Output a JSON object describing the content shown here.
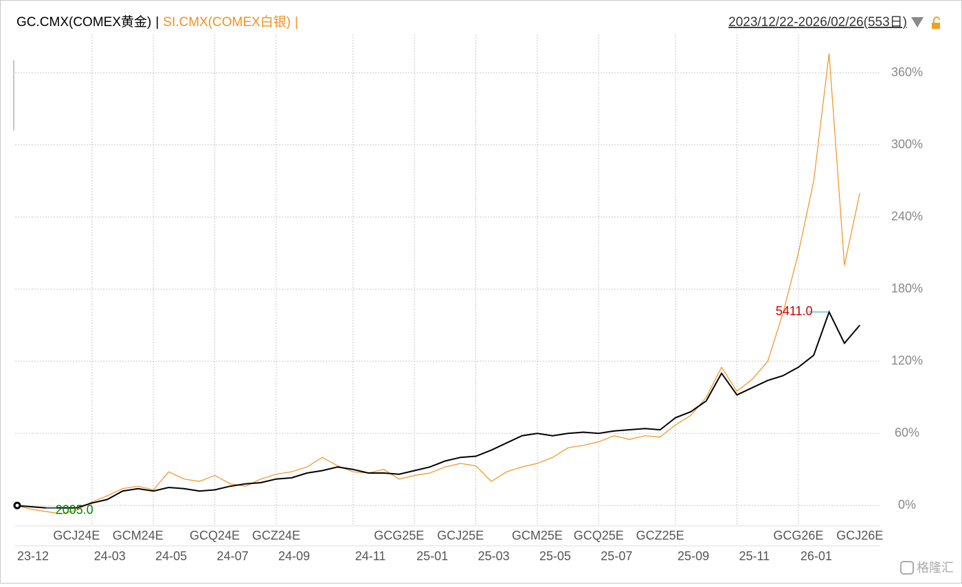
{
  "chart_data": {
    "type": "line",
    "date_range": "2023/12/22-2026/02/26(553日)",
    "separator": "|",
    "watermark": "格隆汇",
    "categories": [
      "23-12",
      null,
      null,
      null,
      null,
      "24-03",
      null,
      null,
      null,
      "24-05",
      null,
      null,
      null,
      "24-07",
      null,
      null,
      null,
      "24-09",
      null,
      null,
      null,
      null,
      "24-11",
      null,
      null,
      null,
      "25-01",
      null,
      null,
      null,
      "25-03",
      null,
      null,
      null,
      "25-05",
      null,
      null,
      null,
      "25-07",
      null,
      null,
      null,
      null,
      "25-09",
      null,
      null,
      null,
      "25-11",
      null,
      null,
      null,
      "26-01",
      null,
      null,
      null,
      null
    ],
    "contract_labels": [
      null,
      null,
      null,
      null,
      "GCJ24E",
      null,
      null,
      null,
      "GCM24E",
      null,
      null,
      null,
      null,
      "GCQ24E",
      null,
      null,
      null,
      "GCZ24E",
      null,
      null,
      null,
      null,
      null,
      null,
      null,
      "GCG25E",
      null,
      null,
      null,
      "GCJ25E",
      null,
      null,
      null,
      null,
      "GCM25E",
      null,
      null,
      null,
      "GCQ25E",
      null,
      null,
      null,
      "GCZ25E",
      null,
      null,
      null,
      null,
      null,
      null,
      null,
      null,
      "GCG26E",
      null,
      null,
      null,
      "GCJ26E"
    ],
    "series": [
      {
        "name": "GC.CMX(COMEX黄金)",
        "color": "#000000",
        "values": [
          0,
          -1,
          -2,
          -2,
          -2,
          2,
          5,
          12,
          14,
          12,
          15,
          14,
          12,
          13,
          16,
          18,
          19,
          22,
          23,
          27,
          29,
          32,
          30,
          27,
          27,
          26,
          29,
          32,
          37,
          40,
          41,
          46,
          52,
          58,
          60,
          58,
          60,
          61,
          60,
          62,
          63,
          64,
          63,
          73,
          78,
          87,
          110,
          92,
          98,
          104,
          108,
          115,
          125,
          161,
          135,
          150
        ]
      },
      {
        "name": "SI.CMX(COMEX白银)",
        "color": "#f5901e",
        "values": [
          0,
          -3,
          -5,
          -7,
          -4,
          3,
          8,
          14,
          16,
          13,
          28,
          22,
          20,
          25,
          18,
          16,
          22,
          26,
          28,
          32,
          40,
          33,
          28,
          27,
          30,
          22,
          25,
          27,
          32,
          35,
          33,
          20,
          28,
          32,
          35,
          40,
          48,
          50,
          53,
          58,
          55,
          58,
          57,
          67,
          75,
          90,
          115,
          95,
          105,
          120,
          160,
          210,
          270,
          376,
          200,
          260
        ]
      }
    ],
    "annotations": [
      {
        "text": "5411.0",
        "color": "#cc0000"
      },
      {
        "text": "2005.0",
        "color": "#008000"
      }
    ],
    "ylim": [
      -17,
      392
    ],
    "yticks": [
      {
        "value": 0,
        "label": "0%"
      },
      {
        "value": 60,
        "label": "60%"
      },
      {
        "value": 120,
        "label": "120%"
      },
      {
        "value": 180,
        "label": "180%"
      },
      {
        "value": 240,
        "label": "240%"
      },
      {
        "value": 300,
        "label": "300%"
      },
      {
        "value": 360,
        "label": "360%"
      }
    ],
    "grid": true
  }
}
